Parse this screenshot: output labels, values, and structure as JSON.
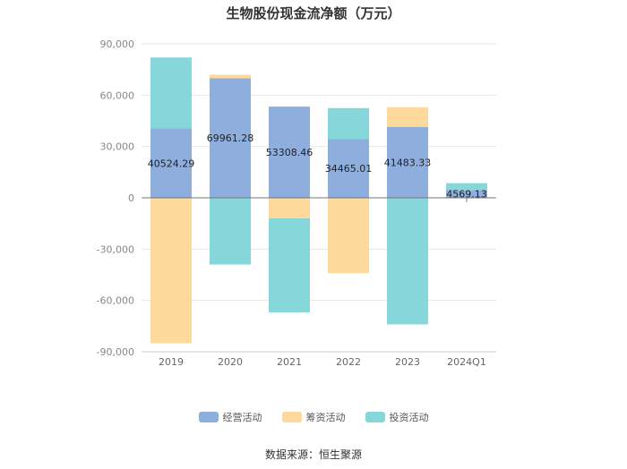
{
  "title": "生物股份现金流净额（万元）",
  "source": "数据来源：恒生聚源",
  "chart_data": {
    "type": "bar",
    "stacked": true,
    "categories": [
      "2019",
      "2020",
      "2021",
      "2022",
      "2023",
      "2024Q1"
    ],
    "series": [
      {
        "name": "经营活动",
        "color": "#8eaedd",
        "values": [
          40524.29,
          69961.28,
          53308.46,
          34465.01,
          41483.33,
          4569.13
        ]
      },
      {
        "name": "筹资活动",
        "color": "#fdd99b",
        "values": [
          -85000,
          2000,
          -12000,
          -44000,
          11500,
          0
        ]
      },
      {
        "name": "投资活动",
        "color": "#86d7da",
        "values": [
          41500,
          -39000,
          -55000,
          18000,
          -74000,
          4000
        ]
      }
    ],
    "data_labels": [
      "40524.29",
      "69961.28",
      "53308.46",
      "34465.01",
      "41483.33",
      "4569.13"
    ],
    "yticks": [
      90000,
      60000,
      30000,
      0,
      -30000,
      -60000,
      -90000
    ],
    "ytick_labels": [
      "90,000",
      "60,000",
      "30,000",
      "0",
      "-30,000",
      "-60,000",
      "-90,000"
    ],
    "ylim": [
      -90000,
      90000
    ],
    "grid": true,
    "legend_position": "bottom"
  }
}
